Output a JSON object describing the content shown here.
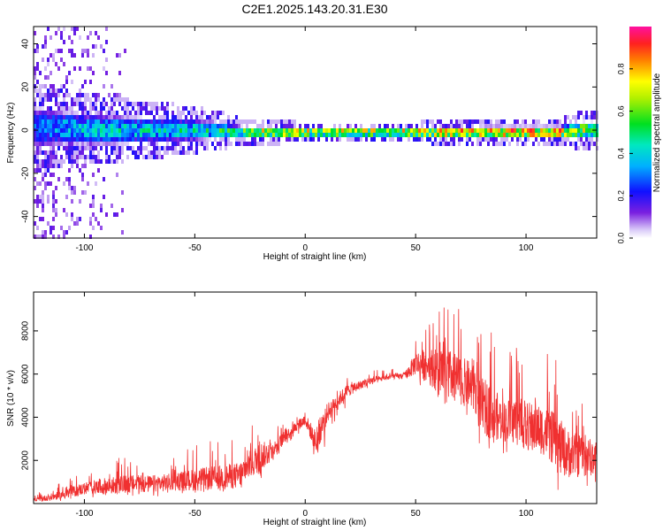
{
  "title": "C2E1.2025.143.20.31.E30",
  "chart_data": [
    {
      "type": "heatmap",
      "xlabel": "Height of straight line (km)",
      "ylabel": "Frequency (Hz)",
      "xlim": [
        -123,
        132
      ],
      "ylim": [
        -50,
        48
      ],
      "xticks": [
        -100,
        -50,
        0,
        50,
        100
      ],
      "yticks": [
        -40,
        -20,
        0,
        20,
        40
      ],
      "xtick_labels": [
        "-100",
        "-50",
        "0",
        "50",
        "100"
      ],
      "ytick_labels": [
        "-40",
        "-20",
        "0",
        "20",
        "40"
      ],
      "colorbar": {
        "label": "Normalized spectral amplitude",
        "range": [
          0,
          1
        ],
        "ticks": [
          0.0,
          0.2,
          0.4,
          0.6,
          0.8
        ],
        "tick_labels": [
          "0.0",
          "0.2",
          "0.4",
          "0.6",
          "0.8"
        ],
        "colormap": "rainbow"
      },
      "band_profile": {
        "x": [
          -123,
          -110,
          -90,
          -70,
          -50,
          -40,
          -30,
          -20,
          -10,
          0,
          20,
          40,
          60,
          80,
          100,
          115,
          125,
          132
        ],
        "center_hz": [
          2,
          2,
          1,
          1,
          1,
          1,
          0,
          0,
          0,
          0,
          0,
          0,
          0,
          0,
          0,
          0,
          1,
          1
        ],
        "half_width_hz": [
          10,
          8,
          7,
          6,
          5,
          4,
          3,
          2.5,
          2.5,
          2,
          2,
          2,
          2.5,
          3,
          3,
          3,
          4,
          4
        ],
        "peak_amplitude": [
          0.3,
          0.4,
          0.45,
          0.45,
          0.5,
          0.55,
          0.6,
          0.85,
          0.9,
          0.9,
          0.9,
          0.88,
          0.9,
          0.9,
          0.9,
          0.9,
          0.75,
          0.7
        ]
      },
      "grid": false
    },
    {
      "type": "line",
      "xlabel": "Height of straight line (km)",
      "ylabel": "SNR (10 * v/v)",
      "xlim": [
        -123,
        132
      ],
      "ylim": [
        0,
        9800
      ],
      "xticks": [
        -100,
        -50,
        0,
        50,
        100
      ],
      "yticks": [
        2000,
        4000,
        6000,
        8000
      ],
      "xtick_labels": [
        "-100",
        "-50",
        "0",
        "50",
        "100"
      ],
      "ytick_labels": [
        "2000",
        "4000",
        "6000",
        "8000"
      ],
      "series": [
        {
          "color": "#f03030",
          "envelope_x": [
            -123,
            -110,
            -100,
            -90,
            -80,
            -70,
            -60,
            -50,
            -40,
            -30,
            -25,
            -20,
            -15,
            -10,
            -5,
            0,
            5,
            10,
            15,
            20,
            25,
            30,
            35,
            40,
            45,
            50,
            55,
            60,
            65,
            70,
            75,
            80,
            85,
            90,
            95,
            100,
            105,
            110,
            115,
            120,
            125,
            132
          ],
          "envelope_low": [
            0,
            100,
            200,
            200,
            300,
            300,
            400,
            500,
            500,
            500,
            700,
            1000,
            1500,
            2500,
            3000,
            3200,
            1300,
            3000,
            4000,
            4600,
            5100,
            5300,
            5600,
            5700,
            5600,
            5600,
            5200,
            4800,
            4400,
            4000,
            3800,
            2400,
            2600,
            2300,
            2500,
            2200,
            2300,
            2000,
            400,
            700,
            400,
            600
          ],
          "envelope_high": [
            400,
            1000,
            1500,
            2000,
            2200,
            2100,
            2200,
            2800,
            3000,
            3200,
            3600,
            4000,
            3500,
            3800,
            4000,
            4400,
            3800,
            5000,
            5500,
            6000,
            6000,
            6200,
            6200,
            6300,
            6300,
            8000,
            8800,
            9200,
            9600,
            9000,
            8700,
            8500,
            8000,
            6500,
            7600,
            7400,
            7300,
            7200,
            6500,
            5200,
            5000,
            4000
          ],
          "typical": [
            150,
            400,
            700,
            800,
            900,
            900,
            1000,
            1100,
            1200,
            1300,
            1800,
            2200,
            2400,
            3000,
            3500,
            3900,
            2800,
            4200,
            4800,
            5300,
            5500,
            5700,
            5800,
            5900,
            5900,
            6500,
            6400,
            6200,
            6000,
            5700,
            5500,
            4500,
            4200,
            3800,
            3900,
            3600,
            3500,
            3300,
            2600,
            2300,
            2200,
            2100
          ]
        }
      ],
      "grid": false
    }
  ]
}
